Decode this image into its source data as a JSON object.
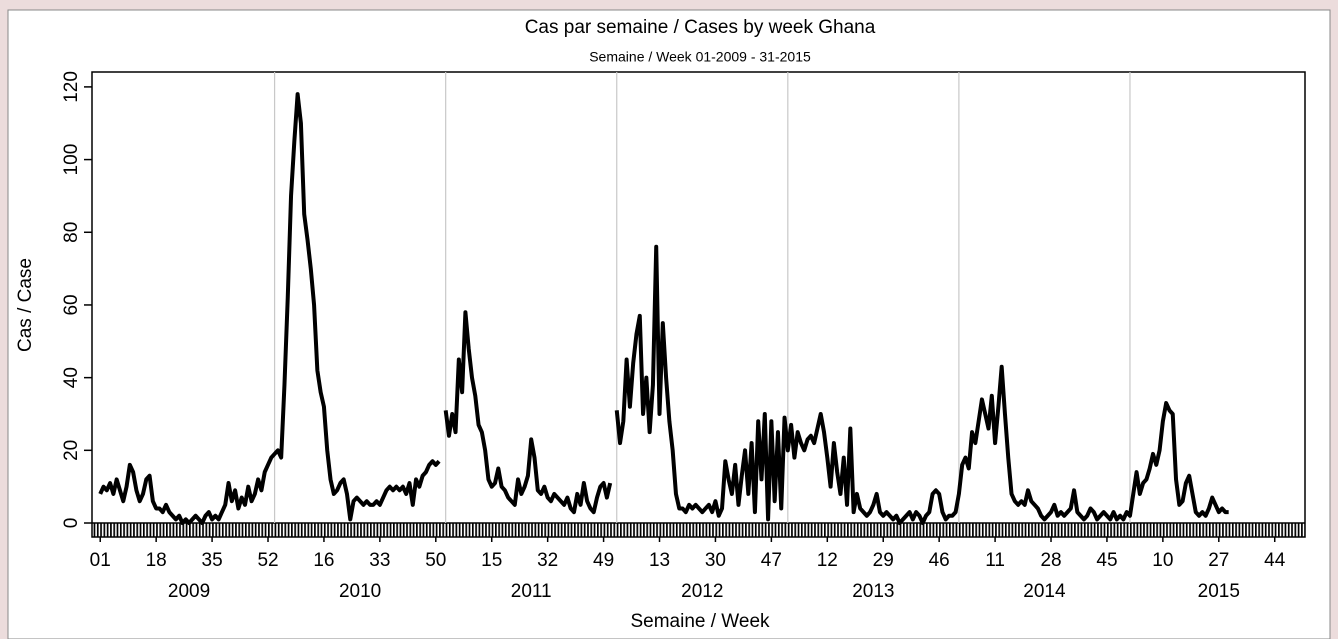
{
  "chart_data": {
    "type": "line",
    "title": "Cas par semaine / Cases by week Ghana",
    "subtitle": "Semaine / Week 01-2009 - 31-2015",
    "ylabel": "Cas / Case",
    "xlabel": "Semaine / Week",
    "color": "#000000",
    "ylim": [
      -3.85,
      124.1
    ],
    "yticks": [
      0,
      20,
      40,
      60,
      80,
      100,
      120
    ],
    "xlim": [
      -2.5,
      366.2
    ],
    "xticks": [
      {
        "value": 0,
        "label": "01"
      },
      {
        "value": 17,
        "label": "18"
      },
      {
        "value": 34,
        "label": "35"
      },
      {
        "value": 51,
        "label": "52"
      },
      {
        "value": 68,
        "label": "16"
      },
      {
        "value": 85,
        "label": "33"
      },
      {
        "value": 102,
        "label": "50"
      },
      {
        "value": 119,
        "label": "15"
      },
      {
        "value": 136,
        "label": "32"
      },
      {
        "value": 153,
        "label": "49"
      },
      {
        "value": 170,
        "label": "13"
      },
      {
        "value": 187,
        "label": "30"
      },
      {
        "value": 204,
        "label": "47"
      },
      {
        "value": 221,
        "label": "12"
      },
      {
        "value": 238,
        "label": "29"
      },
      {
        "value": 255,
        "label": "46"
      },
      {
        "value": 272,
        "label": "11"
      },
      {
        "value": 289,
        "label": "28"
      },
      {
        "value": 306,
        "label": "45"
      },
      {
        "value": 323,
        "label": "10"
      },
      {
        "value": 340,
        "label": "27"
      },
      {
        "value": 357,
        "label": "44"
      }
    ],
    "year_ticks": [
      {
        "value": 27,
        "label": "2009"
      },
      {
        "value": 79,
        "label": "2010"
      },
      {
        "value": 131,
        "label": "2011"
      },
      {
        "value": 183,
        "label": "2012"
      },
      {
        "value": 235,
        "label": "2013"
      },
      {
        "value": 287,
        "label": "2014"
      },
      {
        "value": 340,
        "label": "2015"
      }
    ],
    "xgrid": [
      53,
      105,
      157,
      209,
      261,
      313
    ],
    "values": [
      8,
      10,
      9,
      11,
      8,
      12,
      9,
      6,
      10,
      16,
      14,
      9,
      6,
      8,
      12,
      13,
      6,
      4,
      4,
      3,
      5,
      3,
      2,
      1,
      2,
      0,
      1,
      0,
      1,
      2,
      1,
      0,
      2,
      3,
      1,
      2,
      1,
      3,
      5,
      11,
      6,
      9,
      4,
      7,
      5,
      10,
      6,
      8,
      12,
      9,
      14,
      16,
      18,
      19,
      20,
      18,
      38,
      62,
      90,
      105,
      118,
      110,
      85,
      78,
      70,
      60,
      42,
      36,
      32,
      20,
      12,
      8,
      9,
      11,
      12,
      8,
      1,
      6,
      7,
      6,
      5,
      6,
      5,
      5,
      6,
      5,
      7,
      9,
      10,
      9,
      10,
      9,
      10,
      8,
      11,
      5,
      12,
      10,
      13,
      14,
      16,
      17,
      16,
      17,
      null,
      31,
      24,
      30,
      25,
      45,
      36,
      58,
      48,
      40,
      35,
      27,
      25,
      20,
      12,
      10,
      11,
      15,
      10,
      9,
      7,
      6,
      5,
      12,
      8,
      10,
      13,
      23,
      18,
      9,
      8,
      10,
      7,
      6,
      8,
      7,
      6,
      5,
      7,
      4,
      3,
      8,
      5,
      11,
      6,
      4,
      3,
      7,
      10,
      11,
      7,
      11,
      null,
      31,
      22,
      28,
      45,
      32,
      44,
      52,
      57,
      30,
      40,
      25,
      38,
      76,
      30,
      55,
      40,
      28,
      20,
      8,
      4,
      4,
      3,
      5,
      4,
      5,
      4,
      3,
      4,
      5,
      3,
      6,
      2,
      4,
      17,
      12,
      8,
      16,
      5,
      13,
      20,
      8,
      22,
      3,
      28,
      12,
      30,
      1,
      28,
      6,
      25,
      4,
      29,
      20,
      27,
      18,
      25,
      22,
      20,
      23,
      24,
      22,
      26,
      30,
      25,
      18,
      10,
      22,
      14,
      8,
      18,
      5,
      26,
      3,
      8,
      4,
      3,
      2,
      3,
      5,
      8,
      3,
      2,
      3,
      2,
      1,
      2,
      0,
      1,
      2,
      3,
      1,
      3,
      2,
      0,
      2,
      3,
      8,
      9,
      8,
      3,
      1,
      2,
      2,
      3,
      8,
      16,
      18,
      15,
      25,
      22,
      28,
      34,
      30,
      26,
      35,
      22,
      32,
      43,
      30,
      18,
      8,
      6,
      5,
      6,
      5,
      9,
      6,
      5,
      4,
      2,
      1,
      2,
      3,
      5,
      2,
      3,
      2,
      3,
      4,
      9,
      3,
      2,
      1,
      2,
      4,
      3,
      1,
      2,
      3,
      2,
      1,
      3,
      1,
      2,
      1,
      3,
      2,
      8,
      14,
      8,
      11,
      12,
      15,
      19,
      16,
      20,
      28,
      33,
      31,
      30,
      12,
      5,
      6,
      11,
      13,
      8,
      3,
      2,
      3,
      2,
      4,
      7,
      5,
      3,
      4,
      3,
      3
    ]
  }
}
